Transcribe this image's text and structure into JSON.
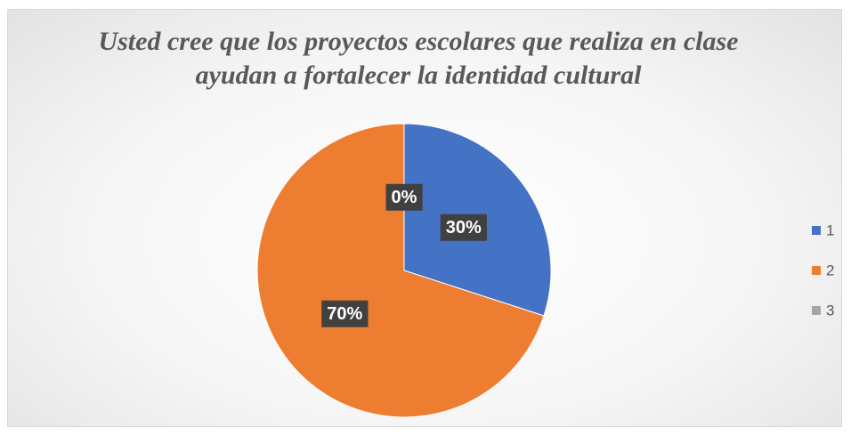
{
  "chart_data": {
    "type": "pie",
    "title": "Usted cree que los proyectos escolares que realiza en clase ayudan a fortalecer la identidad cultural",
    "categories": [
      "1",
      "2",
      "3"
    ],
    "values": [
      30,
      70,
      0
    ],
    "value_labels": [
      "30%",
      "70%",
      "0%"
    ],
    "colors": [
      "#4472c4",
      "#ed7d31",
      "#a5a5a5"
    ],
    "legend": "right"
  }
}
